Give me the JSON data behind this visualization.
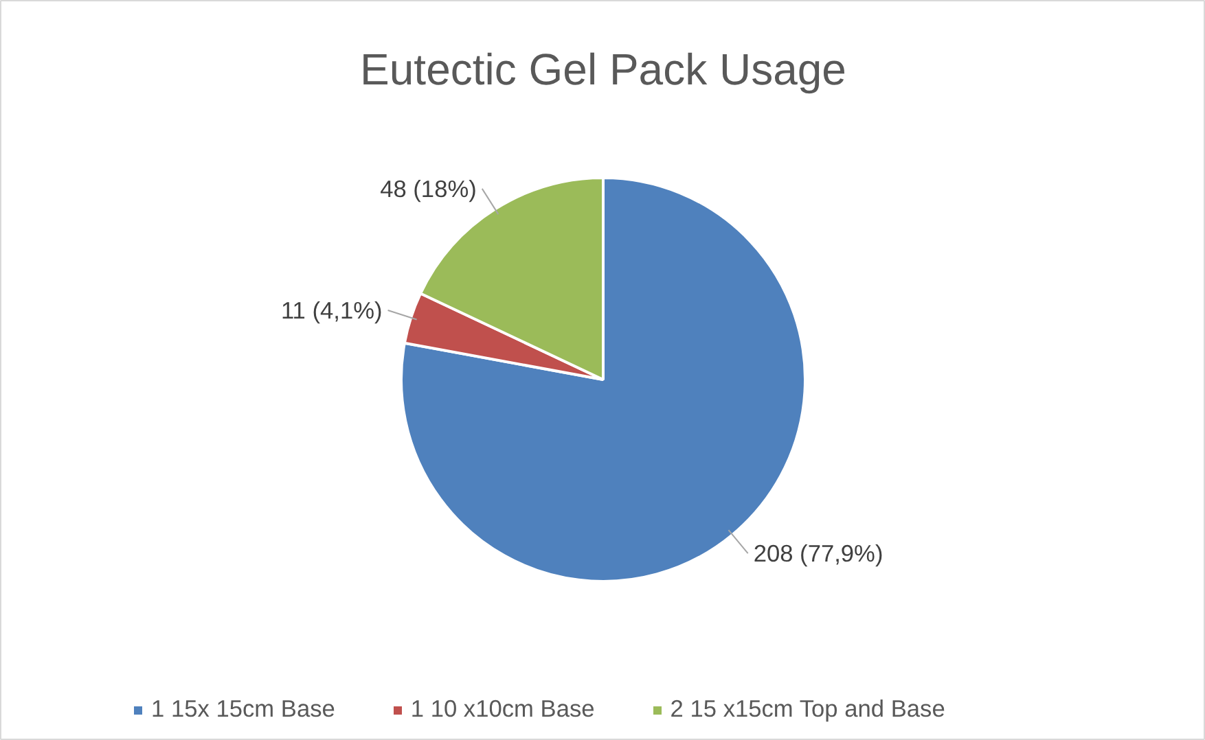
{
  "chart_data": {
    "type": "pie",
    "title": "Eutectic Gel Pack Usage",
    "categories": [
      "1 15x 15cm Base",
      "1 10 x10cm Base",
      "2 15 x15cm Top and Base"
    ],
    "values": [
      208,
      11,
      48
    ],
    "colors": [
      "#4f81bd",
      "#c0504d",
      "#9bbb59"
    ],
    "value_labels": [
      "208 (77,9%)",
      "11 (4,1%)",
      "48 (18%)"
    ],
    "legend": "bottom"
  }
}
